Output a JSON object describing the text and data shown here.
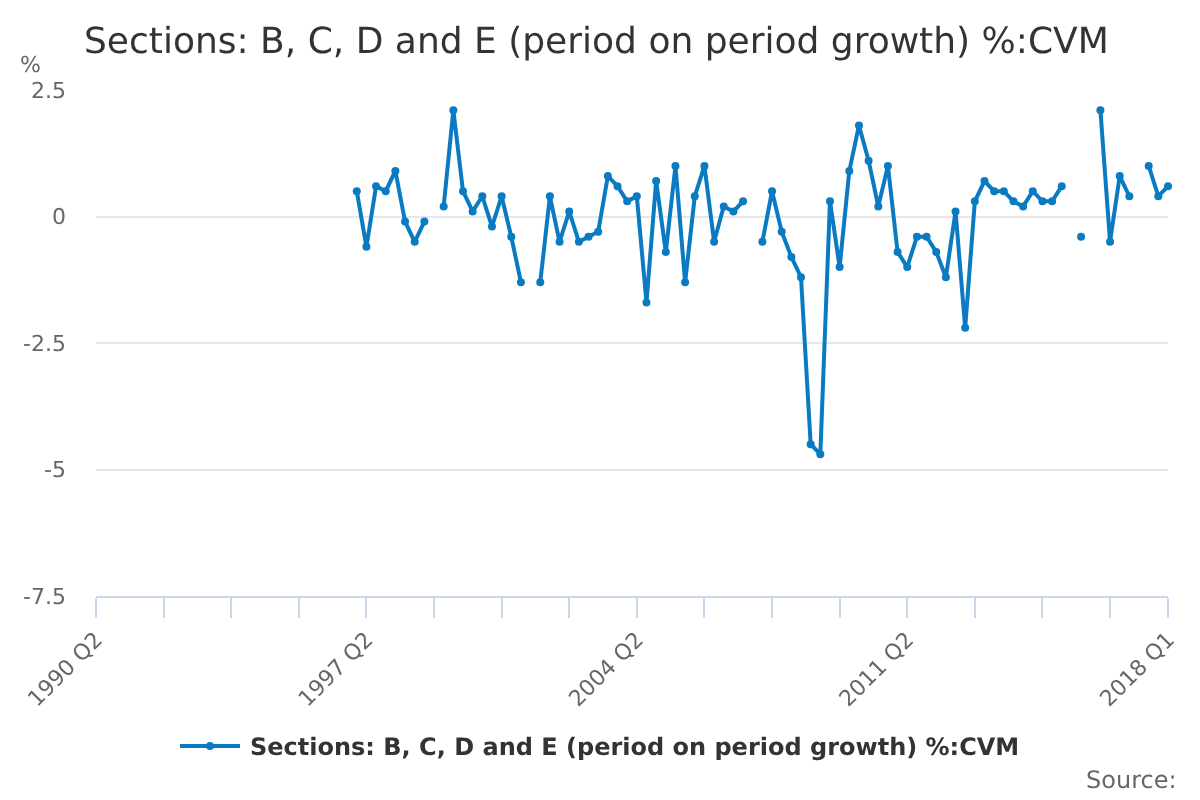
{
  "chart_data": {
    "type": "line",
    "title": "Sections: B, C, D and E (period on period growth) %:CVM",
    "ylabel": "%",
    "annotations": [
      "Source:"
    ],
    "categories": [
      "1990 Q2",
      null,
      null,
      null,
      null,
      null,
      null,
      null,
      null,
      null,
      null,
      null,
      null,
      null,
      null,
      null,
      null,
      null,
      null,
      null,
      null,
      null,
      null,
      null,
      null,
      null,
      null,
      null,
      "1997 Q2",
      null,
      null,
      null,
      null,
      null,
      null,
      null,
      null,
      null,
      null,
      null,
      null,
      null,
      null,
      null,
      null,
      null,
      null,
      null,
      null,
      null,
      null,
      null,
      null,
      null,
      null,
      null,
      "2004 Q2",
      null,
      null,
      null,
      null,
      null,
      null,
      null,
      null,
      null,
      null,
      null,
      null,
      null,
      null,
      null,
      null,
      null,
      null,
      null,
      null,
      null,
      null,
      null,
      null,
      null,
      null,
      null,
      "2011 Q2",
      null,
      null,
      null,
      null,
      null,
      null,
      null,
      null,
      null,
      null,
      null,
      null,
      null,
      null,
      null,
      null,
      null,
      null,
      null,
      null,
      null,
      null,
      null,
      null,
      null,
      null,
      "2018 Q1"
    ],
    "series": [
      {
        "name": "Sections: B, C, D and E (period on period growth) %:CVM",
        "color": "#0a7bc2",
        "values": [
          null,
          null,
          null,
          null,
          null,
          null,
          null,
          null,
          null,
          null,
          null,
          null,
          null,
          null,
          null,
          null,
          null,
          null,
          null,
          null,
          null,
          null,
          null,
          null,
          null,
          null,
          null,
          0.5,
          -0.6,
          0.6,
          0.5,
          0.9,
          -0.1,
          -0.5,
          -0.1,
          null,
          0.2,
          2.1,
          0.5,
          0.1,
          0.4,
          -0.2,
          0.4,
          -0.4,
          -1.3,
          null,
          -1.3,
          0.4,
          -0.5,
          0.1,
          -0.5,
          -0.4,
          -0.3,
          0.8,
          0.6,
          0.3,
          0.4,
          -1.7,
          0.7,
          -0.7,
          1.0,
          -1.3,
          0.4,
          1.0,
          -0.5,
          0.2,
          0.1,
          0.3,
          null,
          -0.5,
          0.5,
          -0.3,
          -0.8,
          -1.2,
          -4.5,
          -4.7,
          0.3,
          -1.0,
          0.9,
          1.8,
          1.1,
          0.2,
          1.0,
          -0.7,
          -1.0,
          -0.4,
          -0.4,
          -0.7,
          -1.2,
          0.1,
          -2.2,
          0.3,
          0.7,
          0.5,
          0.5,
          0.3,
          0.2,
          0.5,
          0.3,
          0.3,
          0.6,
          null,
          -0.4,
          null,
          2.1,
          -0.5,
          0.8,
          0.4,
          null,
          1.0,
          0.4,
          0.6
        ]
      }
    ],
    "ylim": [
      -7.5,
      2.5
    ],
    "yticks": [
      2.5,
      0,
      -2.5,
      -5,
      -7.5
    ],
    "grid": "y",
    "legend": "bottom",
    "marker": "circle",
    "line_style": "solid"
  }
}
